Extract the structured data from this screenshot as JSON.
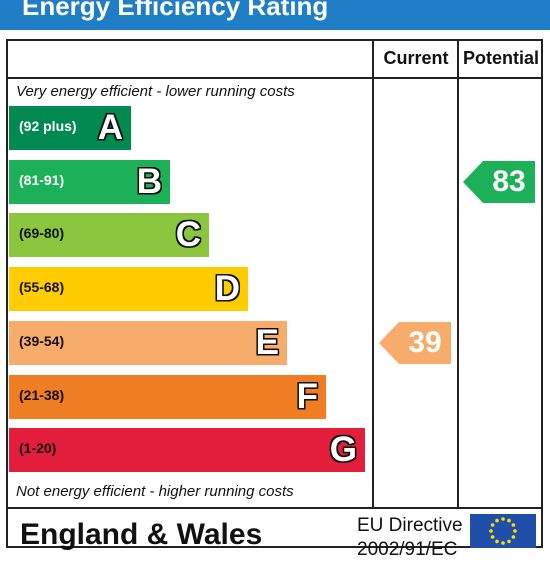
{
  "header": {
    "title": "Energy Efficiency Rating"
  },
  "columns": {
    "current_label": "Current",
    "potential_label": "Potential"
  },
  "notes": {
    "top": "Very energy efficient - lower running costs",
    "bottom": "Not energy efficient - higher running costs"
  },
  "footer": {
    "country": "England & Wales",
    "directive_line1": "EU Directive",
    "directive_line2": "2002/91/EC",
    "flag_icon": "eu-flag-icon"
  },
  "chart_data": {
    "type": "bar",
    "title": "Energy Efficiency Rating",
    "categories": [
      "A",
      "B",
      "C",
      "D",
      "E",
      "F",
      "G"
    ],
    "bands": [
      {
        "letter": "A",
        "range": "(92 plus)",
        "min": 92,
        "max": 100,
        "color": "#008a4f",
        "text_color": "#ffffff"
      },
      {
        "letter": "B",
        "range": "(81-91)",
        "min": 81,
        "max": 91,
        "color": "#1cb159",
        "text_color": "#ffffff"
      },
      {
        "letter": "C",
        "range": "(69-80)",
        "min": 69,
        "max": 80,
        "color": "#8cc63f",
        "text_color": "#111111"
      },
      {
        "letter": "D",
        "range": "(55-68)",
        "min": 55,
        "max": 68,
        "color": "#ffcc00",
        "text_color": "#111111"
      },
      {
        "letter": "E",
        "range": "(39-54)",
        "min": 39,
        "max": 54,
        "color": "#f7ac6b",
        "text_color": "#111111"
      },
      {
        "letter": "F",
        "range": "(21-38)",
        "min": 21,
        "max": 38,
        "color": "#ef7d23",
        "text_color": "#111111"
      },
      {
        "letter": "G",
        "range": "(1-20)",
        "min": 1,
        "max": 20,
        "color": "#e31d3c",
        "text_color": "#111111"
      }
    ],
    "current": {
      "value": 39,
      "band": "E",
      "color": "#f7ac6b"
    },
    "potential": {
      "value": 83,
      "band": "B",
      "color": "#1cb159"
    }
  }
}
